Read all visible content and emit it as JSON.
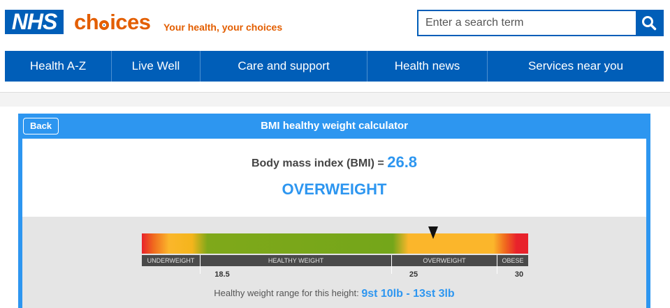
{
  "header": {
    "nhs_logo": "NHS",
    "choices_prefix": "ch",
    "choices_suffix": "ices",
    "tagline": "Your health, your choices",
    "search_placeholder": "Enter a search term",
    "search_icon": "search-icon"
  },
  "colors": {
    "nhs_blue": "#005eb8",
    "choices_orange": "#e35e00",
    "calculator_blue": "#2d96f0"
  },
  "nav": {
    "items": [
      {
        "label": "Health A-Z"
      },
      {
        "label": "Live Well"
      },
      {
        "label": "Care and support"
      },
      {
        "label": "Health news"
      },
      {
        "label": "Services near you"
      }
    ]
  },
  "calculator": {
    "back_label": "Back",
    "title": "BMI healthy weight calculator",
    "bmi_label": "Body mass index (BMI) =",
    "bmi_value": "26.8",
    "category": "OVERWEIGHT",
    "scale": {
      "min": 15,
      "max": 33,
      "bands": [
        "UNDERWEIGHT",
        "HEALTHY WEIGHT",
        "OVERWEIGHT",
        "OBESE"
      ],
      "ticks": [
        "18.5",
        "25",
        "30"
      ],
      "marker_value": 26.8
    },
    "range_label": "Healthy weight range for this height:",
    "range_value": "9st 10lb - 13st 3lb"
  }
}
